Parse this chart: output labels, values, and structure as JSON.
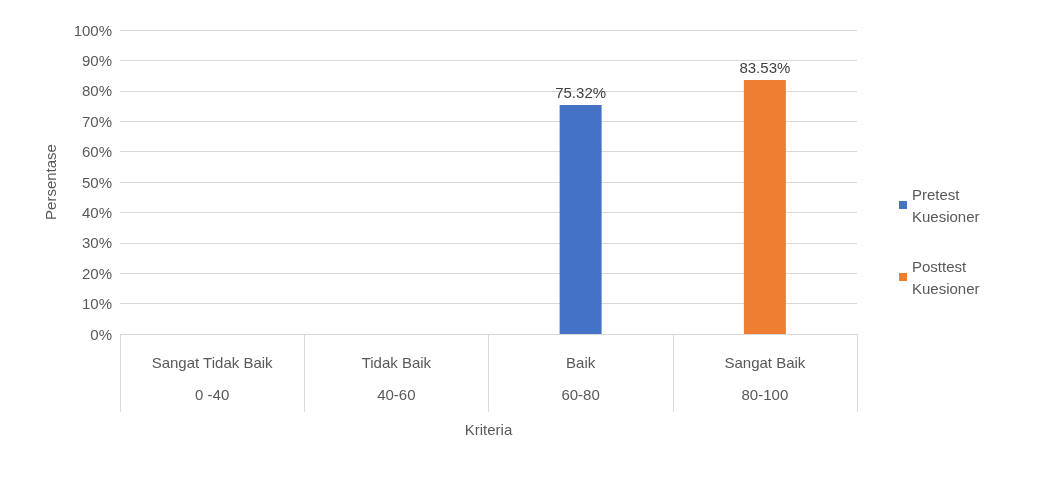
{
  "chart_data": {
    "type": "bar",
    "xlabel": "Kriteria",
    "ylabel": "Persentase",
    "categories": [
      "Sangat Tidak Baik\n0 -40",
      "Tidak Baik\n40-60",
      "Baik\n60-80",
      "Sangat Baik\n80-100"
    ],
    "series": [
      {
        "name": "Pretest Kuesioner",
        "color": "#4472c4",
        "values": [
          null,
          null,
          75.32,
          null
        ],
        "value_labels": [
          null,
          null,
          "75.32%",
          null
        ]
      },
      {
        "name": "Posttest Kuesioner",
        "color": "#ed7d31",
        "values": [
          null,
          null,
          null,
          83.53
        ],
        "value_labels": [
          null,
          null,
          null,
          "83.53%"
        ]
      }
    ],
    "ylim": [
      0,
      100
    ],
    "yticks": [
      {
        "value": 0,
        "label": "0%"
      },
      {
        "value": 10,
        "label": "10%"
      },
      {
        "value": 20,
        "label": "20%"
      },
      {
        "value": 30,
        "label": "30%"
      },
      {
        "value": 40,
        "label": "40%"
      },
      {
        "value": 50,
        "label": "50%"
      },
      {
        "value": 60,
        "label": "60%"
      },
      {
        "value": 70,
        "label": "70%"
      },
      {
        "value": 80,
        "label": "80%"
      },
      {
        "value": 90,
        "label": "90%"
      },
      {
        "value": 100,
        "label": "100%"
      }
    ],
    "grid": "y",
    "legend": "right"
  }
}
